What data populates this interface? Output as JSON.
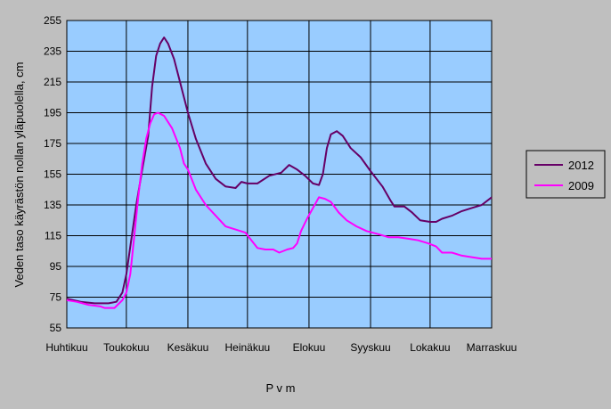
{
  "chart_data": {
    "type": "line",
    "xlabel": "P v m",
    "ylabel": "Veden taso käyrästön nollan yläpuolella, cm",
    "ylim": [
      55,
      255
    ],
    "yticks": [
      "255",
      "235",
      "215",
      "195",
      "175",
      "155",
      "135",
      "115",
      "95",
      "75",
      "55"
    ],
    "month_labels": [
      "Huhtikuu",
      "Toukokuu",
      "Kesäkuu",
      "Heinäkuu",
      "Elokuu",
      "Syyskuu",
      "Lokakuu",
      "Marraskuu"
    ],
    "grid": true,
    "legend": "right",
    "plot_background": "#99ccff",
    "page_background": "#bfbfbf",
    "series": [
      {
        "name": "2012",
        "color": "#660066",
        "points": [
          [
            "04-01",
            74
          ],
          [
            "04-08",
            72
          ],
          [
            "04-15",
            71
          ],
          [
            "04-22",
            71
          ],
          [
            "04-26",
            72
          ],
          [
            "04-29",
            78
          ],
          [
            "05-01",
            90
          ],
          [
            "05-03",
            108
          ],
          [
            "05-06",
            135
          ],
          [
            "05-09",
            158
          ],
          [
            "05-12",
            180
          ],
          [
            "05-14",
            212
          ],
          [
            "05-16",
            232
          ],
          [
            "05-18",
            240
          ],
          [
            "05-20",
            244
          ],
          [
            "05-22",
            240
          ],
          [
            "05-25",
            230
          ],
          [
            "05-28",
            215
          ],
          [
            "06-01",
            195
          ],
          [
            "06-05",
            178
          ],
          [
            "06-10",
            162
          ],
          [
            "06-15",
            152
          ],
          [
            "06-20",
            147
          ],
          [
            "06-25",
            146
          ],
          [
            "06-28",
            150
          ],
          [
            "07-01",
            149
          ],
          [
            "07-06",
            149
          ],
          [
            "07-12",
            154
          ],
          [
            "07-18",
            156
          ],
          [
            "07-22",
            161
          ],
          [
            "07-26",
            158
          ],
          [
            "07-30",
            154
          ],
          [
            "08-03",
            149
          ],
          [
            "08-06",
            148
          ],
          [
            "08-08",
            155
          ],
          [
            "08-10",
            172
          ],
          [
            "08-12",
            181
          ],
          [
            "08-15",
            183
          ],
          [
            "08-18",
            180
          ],
          [
            "08-22",
            172
          ],
          [
            "08-27",
            166
          ],
          [
            "09-01",
            157
          ],
          [
            "09-07",
            147
          ],
          [
            "09-11",
            138
          ],
          [
            "09-13",
            134
          ],
          [
            "09-18",
            134
          ],
          [
            "09-22",
            130
          ],
          [
            "09-26",
            125
          ],
          [
            "10-01",
            124
          ],
          [
            "10-04",
            124
          ],
          [
            "10-07",
            126
          ],
          [
            "10-12",
            128
          ],
          [
            "10-17",
            131
          ],
          [
            "10-22",
            133
          ],
          [
            "10-27",
            135
          ],
          [
            "11-01",
            140
          ]
        ]
      },
      {
        "name": "2009",
        "color": "#ff00ff",
        "points": [
          [
            "04-01",
            73
          ],
          [
            "04-06",
            72
          ],
          [
            "04-12",
            70
          ],
          [
            "04-18",
            69
          ],
          [
            "04-20",
            68
          ],
          [
            "04-25",
            68
          ],
          [
            "04-29",
            73
          ],
          [
            "05-01",
            78
          ],
          [
            "05-03",
            90
          ],
          [
            "05-05",
            115
          ],
          [
            "05-07",
            140
          ],
          [
            "05-09",
            162
          ],
          [
            "05-11",
            178
          ],
          [
            "05-13",
            188
          ],
          [
            "05-15",
            194
          ],
          [
            "05-17",
            195
          ],
          [
            "05-20",
            193
          ],
          [
            "05-24",
            185
          ],
          [
            "05-28",
            172
          ],
          [
            "05-30",
            162
          ],
          [
            "06-01",
            158
          ],
          [
            "06-05",
            145
          ],
          [
            "06-10",
            135
          ],
          [
            "06-15",
            128
          ],
          [
            "06-20",
            121
          ],
          [
            "06-25",
            119
          ],
          [
            "06-30",
            117
          ],
          [
            "07-03",
            112
          ],
          [
            "07-06",
            107
          ],
          [
            "07-10",
            106
          ],
          [
            "07-14",
            106
          ],
          [
            "07-17",
            104
          ],
          [
            "07-21",
            106
          ],
          [
            "07-24",
            107
          ],
          [
            "07-26",
            110
          ],
          [
            "07-28",
            118
          ],
          [
            "07-31",
            126
          ],
          [
            "08-03",
            133
          ],
          [
            "08-06",
            140
          ],
          [
            "08-09",
            139
          ],
          [
            "08-12",
            137
          ],
          [
            "08-16",
            130
          ],
          [
            "08-20",
            125
          ],
          [
            "08-25",
            121
          ],
          [
            "08-30",
            118
          ],
          [
            "09-05",
            116
          ],
          [
            "09-10",
            114
          ],
          [
            "09-15",
            114
          ],
          [
            "09-20",
            113
          ],
          [
            "09-25",
            112
          ],
          [
            "09-30",
            110
          ],
          [
            "10-04",
            108
          ],
          [
            "10-07",
            104
          ],
          [
            "10-12",
            104
          ],
          [
            "10-17",
            102
          ],
          [
            "10-22",
            101
          ],
          [
            "10-27",
            100
          ],
          [
            "11-01",
            100
          ]
        ]
      }
    ]
  }
}
